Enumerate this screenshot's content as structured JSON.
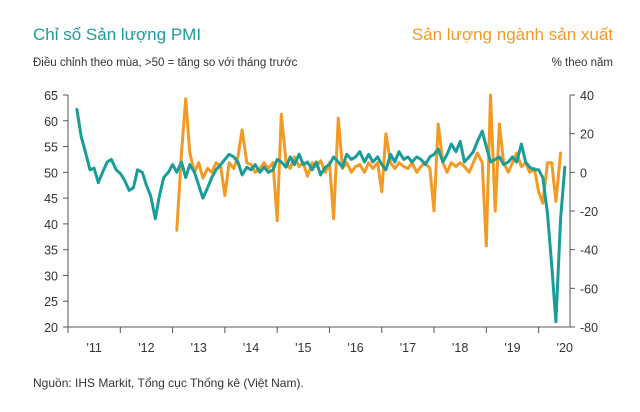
{
  "chart_data": {
    "type": "line",
    "title_left": "Chỉ số Sản lượng PMI",
    "subtitle_left": "Điều chỉnh theo mùa, >50 = tăng so với tháng trước",
    "title_right": "Sản lượng ngành sản xuất",
    "subtitle_right": "% theo năm",
    "source": "Nguồn: IHS Markit, Tổng cục Thống kê (Việt Nam).",
    "colors": {
      "pmi": "#1a9c98",
      "production": "#f39a24"
    },
    "x_ticks": [
      {
        "label": "'11",
        "year": 2011
      },
      {
        "label": "'12",
        "year": 2012
      },
      {
        "label": "'13",
        "year": 2013
      },
      {
        "label": "'14",
        "year": 2014
      },
      {
        "label": "'15",
        "year": 2015
      },
      {
        "label": "'16",
        "year": 2016
      },
      {
        "label": "'17",
        "year": 2017
      },
      {
        "label": "'18",
        "year": 2018
      },
      {
        "label": "'19",
        "year": 2019
      },
      {
        "label": "'20",
        "year": 2020
      }
    ],
    "x_range": [
      2011.0,
      2020.6
    ],
    "y_left": {
      "min": 20,
      "max": 65,
      "ticks": [
        20,
        25,
        30,
        35,
        40,
        45,
        50,
        55,
        60,
        65
      ]
    },
    "y_right": {
      "min": -80,
      "max": 40,
      "ticks": [
        -80,
        -60,
        -40,
        -20,
        0,
        20,
        40
      ]
    },
    "series": [
      {
        "key": "pmi",
        "axis": "left",
        "points": [
          [
            2011.17,
            62.2
          ],
          [
            2011.25,
            57.0
          ],
          [
            2011.33,
            54.0
          ],
          [
            2011.42,
            50.5
          ],
          [
            2011.5,
            50.8
          ],
          [
            2011.58,
            48.0
          ],
          [
            2011.67,
            50.2
          ],
          [
            2011.75,
            52.0
          ],
          [
            2011.83,
            52.5
          ],
          [
            2011.92,
            50.5
          ],
          [
            2012.0,
            49.8
          ],
          [
            2012.08,
            48.5
          ],
          [
            2012.17,
            46.5
          ],
          [
            2012.25,
            47.0
          ],
          [
            2012.33,
            50.5
          ],
          [
            2012.42,
            50.0
          ],
          [
            2012.5,
            47.5
          ],
          [
            2012.58,
            45.5
          ],
          [
            2012.67,
            41.0
          ],
          [
            2012.75,
            45.5
          ],
          [
            2012.83,
            49.0
          ],
          [
            2012.92,
            50.0
          ],
          [
            2013.0,
            51.5
          ],
          [
            2013.08,
            50.0
          ],
          [
            2013.17,
            52.0
          ],
          [
            2013.25,
            49.0
          ],
          [
            2013.33,
            51.5
          ],
          [
            2013.42,
            50.0
          ],
          [
            2013.5,
            47.5
          ],
          [
            2013.58,
            45.0
          ],
          [
            2013.67,
            47.0
          ],
          [
            2013.75,
            49.0
          ],
          [
            2013.83,
            50.5
          ],
          [
            2013.92,
            51.5
          ],
          [
            2014.0,
            52.5
          ],
          [
            2014.08,
            53.5
          ],
          [
            2014.17,
            53.0
          ],
          [
            2014.25,
            52.0
          ],
          [
            2014.33,
            49.5
          ],
          [
            2014.42,
            51.0
          ],
          [
            2014.5,
            50.5
          ],
          [
            2014.58,
            51.5
          ],
          [
            2014.67,
            50.0
          ],
          [
            2014.75,
            51.0
          ],
          [
            2014.83,
            50.0
          ],
          [
            2014.92,
            50.5
          ],
          [
            2015.0,
            52.5
          ],
          [
            2015.08,
            52.0
          ],
          [
            2015.17,
            51.0
          ],
          [
            2015.25,
            53.0
          ],
          [
            2015.33,
            51.5
          ],
          [
            2015.42,
            53.5
          ],
          [
            2015.5,
            51.5
          ],
          [
            2015.58,
            52.0
          ],
          [
            2015.67,
            50.5
          ],
          [
            2015.75,
            52.0
          ],
          [
            2015.83,
            49.5
          ],
          [
            2015.92,
            51.0
          ],
          [
            2016.0,
            51.5
          ],
          [
            2016.08,
            53.0
          ],
          [
            2016.17,
            52.0
          ],
          [
            2016.25,
            51.0
          ],
          [
            2016.33,
            53.5
          ],
          [
            2016.42,
            52.5
          ],
          [
            2016.5,
            53.0
          ],
          [
            2016.58,
            54.0
          ],
          [
            2016.67,
            52.0
          ],
          [
            2016.75,
            53.5
          ],
          [
            2016.83,
            52.0
          ],
          [
            2016.92,
            53.0
          ],
          [
            2017.0,
            51.5
          ],
          [
            2017.08,
            50.5
          ],
          [
            2017.17,
            53.5
          ],
          [
            2017.25,
            52.0
          ],
          [
            2017.33,
            54.0
          ],
          [
            2017.42,
            52.5
          ],
          [
            2017.5,
            53.0
          ],
          [
            2017.58,
            52.0
          ],
          [
            2017.67,
            53.0
          ],
          [
            2017.75,
            52.5
          ],
          [
            2017.83,
            51.5
          ],
          [
            2017.92,
            53.0
          ],
          [
            2018.0,
            53.5
          ],
          [
            2018.08,
            54.5
          ],
          [
            2018.17,
            52.0
          ],
          [
            2018.25,
            53.5
          ],
          [
            2018.33,
            55.5
          ],
          [
            2018.42,
            54.0
          ],
          [
            2018.5,
            56.0
          ],
          [
            2018.58,
            52.0
          ],
          [
            2018.67,
            53.0
          ],
          [
            2018.75,
            54.0
          ],
          [
            2018.83,
            56.0
          ],
          [
            2018.92,
            58.0
          ],
          [
            2019.0,
            55.0
          ],
          [
            2019.08,
            52.0
          ],
          [
            2019.17,
            52.5
          ],
          [
            2019.25,
            53.0
          ],
          [
            2019.33,
            51.5
          ],
          [
            2019.42,
            52.0
          ],
          [
            2019.5,
            53.0
          ],
          [
            2019.58,
            52.0
          ],
          [
            2019.67,
            55.5
          ],
          [
            2019.75,
            52.0
          ],
          [
            2019.83,
            51.0
          ],
          [
            2019.92,
            50.5
          ],
          [
            2020.0,
            50.5
          ],
          [
            2020.08,
            49.0
          ],
          [
            2020.17,
            42.0
          ],
          [
            2020.25,
            32.0
          ],
          [
            2020.33,
            21.0
          ],
          [
            2020.42,
            41.0
          ],
          [
            2020.5,
            51.0
          ]
        ]
      },
      {
        "key": "production",
        "axis": "right",
        "points": [
          [
            2013.08,
            -30.0
          ],
          [
            2013.17,
            10.0
          ],
          [
            2013.25,
            38.0
          ],
          [
            2013.33,
            10.0
          ],
          [
            2013.42,
            0.0
          ],
          [
            2013.5,
            5.0
          ],
          [
            2013.58,
            -3.0
          ],
          [
            2013.67,
            2.0
          ],
          [
            2013.75,
            0.0
          ],
          [
            2013.83,
            5.0
          ],
          [
            2013.92,
            3.0
          ],
          [
            2014.0,
            -12.0
          ],
          [
            2014.08,
            5.0
          ],
          [
            2014.17,
            2.0
          ],
          [
            2014.25,
            8.0
          ],
          [
            2014.33,
            22.0
          ],
          [
            2014.42,
            5.0
          ],
          [
            2014.5,
            4.0
          ],
          [
            2014.58,
            0.0
          ],
          [
            2014.67,
            2.0
          ],
          [
            2014.75,
            5.0
          ],
          [
            2014.83,
            2.0
          ],
          [
            2014.92,
            5.0
          ],
          [
            2015.0,
            -25.0
          ],
          [
            2015.08,
            30.0
          ],
          [
            2015.17,
            5.0
          ],
          [
            2015.25,
            2.0
          ],
          [
            2015.33,
            8.0
          ],
          [
            2015.42,
            3.0
          ],
          [
            2015.5,
            5.0
          ],
          [
            2015.58,
            -2.0
          ],
          [
            2015.67,
            5.0
          ],
          [
            2015.75,
            3.0
          ],
          [
            2015.83,
            6.0
          ],
          [
            2015.92,
            0.0
          ],
          [
            2016.0,
            5.0
          ],
          [
            2016.08,
            -24.0
          ],
          [
            2016.17,
            28.0
          ],
          [
            2016.25,
            2.0
          ],
          [
            2016.33,
            5.0
          ],
          [
            2016.42,
            0.0
          ],
          [
            2016.5,
            3.0
          ],
          [
            2016.58,
            4.0
          ],
          [
            2016.67,
            0.0
          ],
          [
            2016.75,
            5.0
          ],
          [
            2016.83,
            2.0
          ],
          [
            2016.92,
            5.0
          ],
          [
            2017.0,
            -10.0
          ],
          [
            2017.08,
            20.0
          ],
          [
            2017.17,
            5.0
          ],
          [
            2017.25,
            2.0
          ],
          [
            2017.33,
            5.0
          ],
          [
            2017.42,
            3.0
          ],
          [
            2017.5,
            2.0
          ],
          [
            2017.58,
            5.0
          ],
          [
            2017.67,
            0.0
          ],
          [
            2017.75,
            3.0
          ],
          [
            2017.83,
            5.0
          ],
          [
            2017.92,
            2.0
          ],
          [
            2018.0,
            -20.0
          ],
          [
            2018.08,
            25.0
          ],
          [
            2018.17,
            5.0
          ],
          [
            2018.25,
            0.0
          ],
          [
            2018.33,
            5.0
          ],
          [
            2018.42,
            3.0
          ],
          [
            2018.5,
            5.0
          ],
          [
            2018.58,
            3.0
          ],
          [
            2018.67,
            0.0
          ],
          [
            2018.75,
            5.0
          ],
          [
            2018.83,
            10.0
          ],
          [
            2018.92,
            5.0
          ],
          [
            2019.0,
            -38.0
          ],
          [
            2019.08,
            40.0
          ],
          [
            2019.17,
            -20.0
          ],
          [
            2019.25,
            25.0
          ],
          [
            2019.33,
            5.0
          ],
          [
            2019.42,
            0.0
          ],
          [
            2019.5,
            5.0
          ],
          [
            2019.58,
            10.0
          ],
          [
            2019.67,
            3.0
          ],
          [
            2019.75,
            5.0
          ],
          [
            2019.83,
            0.0
          ],
          [
            2019.92,
            2.0
          ],
          [
            2020.0,
            -10.0
          ],
          [
            2020.08,
            -16.0
          ],
          [
            2020.17,
            5.0
          ],
          [
            2020.25,
            5.0
          ],
          [
            2020.33,
            -15.0
          ],
          [
            2020.42,
            10.0
          ]
        ]
      }
    ]
  }
}
